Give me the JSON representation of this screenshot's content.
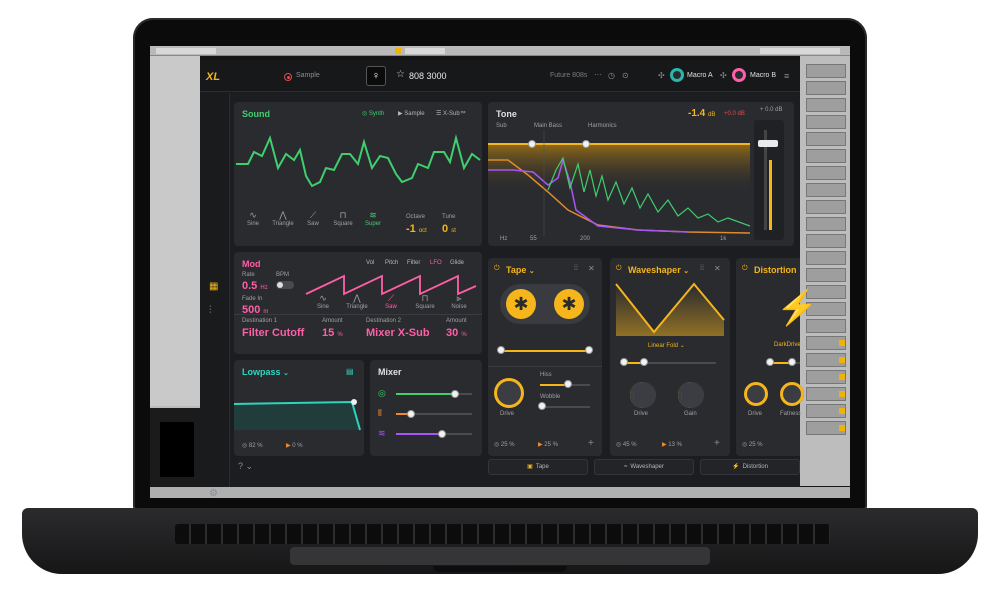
{
  "plugin": {
    "logo": "XL",
    "sample_button": "Sample",
    "preset_name": "808 3000",
    "preset_category": "Future 808s",
    "macros": [
      {
        "label": "Macro A"
      },
      {
        "label": "Macro B"
      }
    ]
  },
  "sound": {
    "title": "Sound",
    "modes": [
      "Synth",
      "Sample",
      "X-Sub™"
    ],
    "active_mode": "Synth",
    "waveforms": [
      "Sine",
      "Triangle",
      "Saw",
      "Square",
      "Super"
    ],
    "active_waveform": "Super",
    "octave": {
      "label": "Octave",
      "value": "-1",
      "unit": "oct"
    },
    "tune": {
      "label": "Tune",
      "value": "0",
      "unit": "st"
    }
  },
  "tone": {
    "title": "Tone",
    "gain": {
      "value": "-1.4",
      "unit": "dB"
    },
    "gain2": "+0.0 dB",
    "out_level": "+ 0.0 dB",
    "bands": [
      "Sub",
      "Main Bass",
      "Harmonics"
    ],
    "freq_ticks": [
      "Hz",
      "55",
      "200",
      "1k"
    ]
  },
  "mod": {
    "title": "Mod",
    "targets": [
      "Vol",
      "Pitch",
      "Filter",
      "LFO",
      "Glide"
    ],
    "active_target": "LFO",
    "rate": {
      "label": "Rate",
      "value": "0.5",
      "unit": "Hz"
    },
    "bpm_label": "BPM",
    "fade": {
      "label": "Fade In",
      "value": "500",
      "unit": "m"
    },
    "waveforms": [
      "Sine",
      "Triangle",
      "Saw",
      "Square",
      "Noise"
    ],
    "active_waveform": "Saw",
    "dest1": {
      "label": "Destination 1",
      "value": "Filter Cutoff",
      "amount_label": "Amount",
      "amount": "15",
      "unit": "%"
    },
    "dest2": {
      "label": "Destination 2",
      "value": "Mixer X-Sub",
      "amount_label": "Amount",
      "amount": "30",
      "unit": "%"
    }
  },
  "filter": {
    "title": "Lowpass",
    "cutoff": "82 %",
    "reso": "0 %"
  },
  "mixer": {
    "title": "Mixer",
    "levels": [
      0.78,
      0.2,
      0.6
    ]
  },
  "tape": {
    "title": "Tape",
    "drive_label": "Drive",
    "hiss_label": "Hiss",
    "wobble_label": "Wobble",
    "mix1": "25 %",
    "mix2": "25 %"
  },
  "waveshaper": {
    "title": "Waveshaper",
    "mode": "Linear Fold",
    "drive_label": "Drive",
    "gain_label": "Gain",
    "mix1": "45 %",
    "mix2": "13 %"
  },
  "distortion": {
    "title": "Distortion",
    "mode": "DarkDrive",
    "drive_label": "Drive",
    "fat_label": "Fatness",
    "mix1": "25 %"
  },
  "fx_bar": [
    "Tape",
    "Waveshaper",
    "Distortion"
  ],
  "colors": {
    "accent": "#f5b51b",
    "sound": "#3fcf6e",
    "mod": "#ff5fa8",
    "filter": "#2dd4bf",
    "mixer_sub": "#a855f7"
  }
}
